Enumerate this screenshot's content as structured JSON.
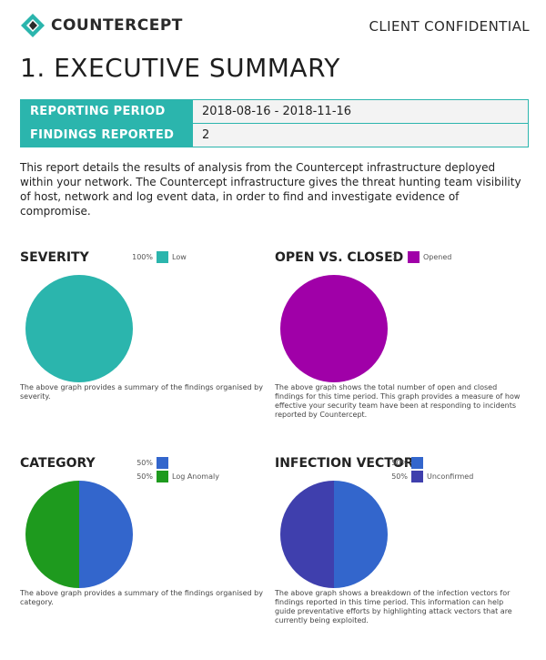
{
  "header": {
    "brand": "COUNTERCEPT",
    "confidential": "CLIENT CONFIDENTIAL",
    "logo_icon": "countercept-logo-icon",
    "logo_colors": [
      "#2bb5ad",
      "#2a2a2a"
    ]
  },
  "page_title": "1. EXECUTIVE SUMMARY",
  "info_table": [
    {
      "label": "REPORTING PERIOD",
      "value": "2018-08-16 - 2018-11-16"
    },
    {
      "label": "FINDINGS REPORTED",
      "value": "2"
    }
  ],
  "intro": "This report details the results of analysis from the Countercept infrastructure deployed within your network. The Countercept infrastructure gives the threat hunting team visibility of host, network and log event data, in order to find and investigate evidence of compromise.",
  "theme": {
    "accent": "#2bb5ad"
  },
  "panels": [
    {
      "title": "SEVERITY",
      "caption": "The above graph provides a summary of the findings organised by severity.",
      "legend": [
        {
          "pct": "100%",
          "label": "Low",
          "color": "#2bb5ad"
        }
      ]
    },
    {
      "title": "OPEN VS. CLOSED",
      "caption": "The above graph shows the total number of open and closed findings for this time period. This graph provides a measure of how effective your security team have been at responding to incidents reported by Countercept.",
      "legend": [
        {
          "pct": "1",
          "label": "Opened",
          "color": "#a000a8"
        }
      ]
    },
    {
      "title": "CATEGORY",
      "caption": "The above graph provides a summary of the findings organised by category.",
      "legend": [
        {
          "pct": "50%",
          "label": "",
          "color": "#3366cc"
        },
        {
          "pct": "50%",
          "label": "Log Anomaly",
          "color": "#1e9a1e"
        }
      ]
    },
    {
      "title": "INFECTION VECTOR",
      "caption": "The above graph shows a breakdown of the infection vectors for findings reported in this time period. This information can help guide preventative efforts by highlighting attack vectors that are currently being exploited.",
      "legend": [
        {
          "pct": "50%",
          "label": "",
          "color": "#3366cc"
        },
        {
          "pct": "50%",
          "label": "Unconfirmed",
          "color": "#3f3fad"
        }
      ]
    }
  ],
  "chart_data": [
    {
      "type": "pie",
      "title": "SEVERITY",
      "categories": [
        "Low"
      ],
      "values": [
        100
      ],
      "colors": [
        "#2bb5ad"
      ]
    },
    {
      "type": "pie",
      "title": "OPEN VS. CLOSED",
      "categories": [
        "Opened"
      ],
      "values": [
        1
      ],
      "colors": [
        "#a000a8"
      ]
    },
    {
      "type": "pie",
      "title": "CATEGORY",
      "categories": [
        "",
        "Log Anomaly"
      ],
      "values": [
        50,
        50
      ],
      "colors": [
        "#3366cc",
        "#1e9a1e"
      ]
    },
    {
      "type": "pie",
      "title": "INFECTION VECTOR",
      "categories": [
        "",
        "Unconfirmed"
      ],
      "values": [
        50,
        50
      ],
      "colors": [
        "#3366cc",
        "#3f3fad"
      ]
    }
  ]
}
